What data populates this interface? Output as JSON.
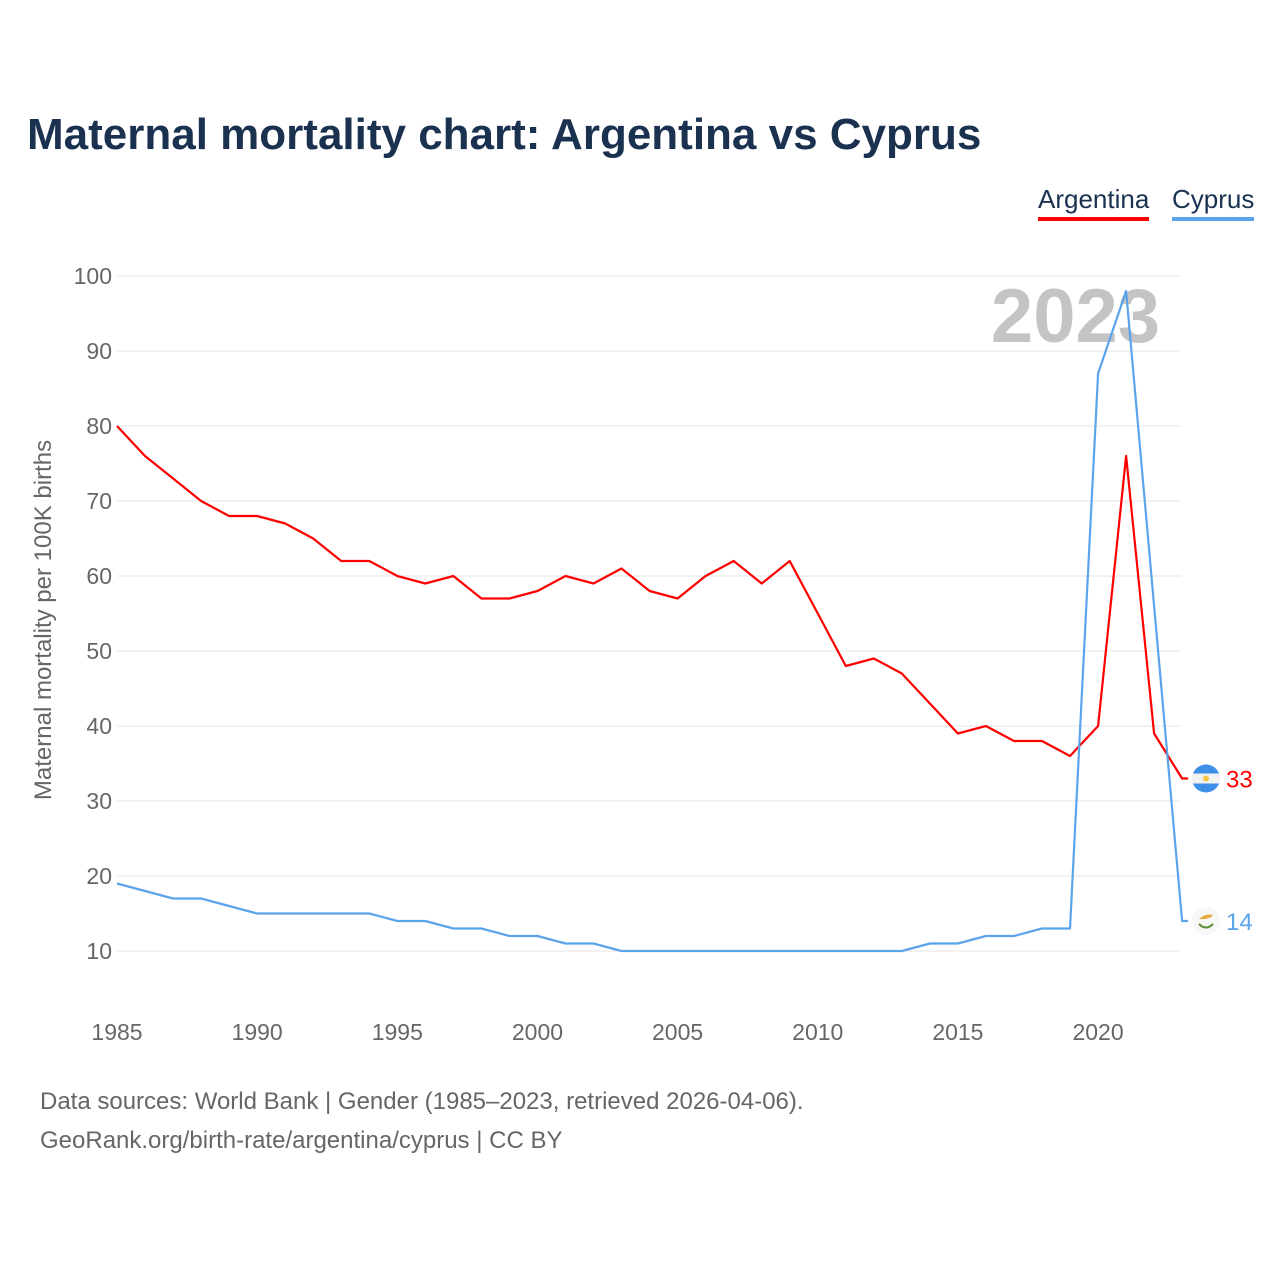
{
  "title": "Maternal mortality chart: Argentina vs Cyprus",
  "footer": {
    "line1": "Data sources: World Bank | Gender (1985–2023, retrieved 2026-04-06).",
    "line2": "GeoRank.org/birth-rate/argentina/cyprus | CC BY"
  },
  "chart_data": {
    "type": "line",
    "title": "Maternal mortality chart: Argentina vs Cyprus",
    "xlabel": "",
    "ylabel": "Maternal mortality per 100K births",
    "xlim": [
      1985,
      2023
    ],
    "ylim": [
      10,
      100
    ],
    "xticks": [
      "1985",
      "1990",
      "1995",
      "2000",
      "2005",
      "2010",
      "2015",
      "2020"
    ],
    "yticks": [
      "10",
      "20",
      "30",
      "40",
      "50",
      "60",
      "70",
      "80",
      "90",
      "100"
    ],
    "year_watermark": "2023",
    "grid": true,
    "legend_position": "top-right",
    "x": [
      1985,
      1986,
      1987,
      1988,
      1989,
      1990,
      1991,
      1992,
      1993,
      1994,
      1995,
      1996,
      1997,
      1998,
      1999,
      2000,
      2001,
      2002,
      2003,
      2004,
      2005,
      2006,
      2007,
      2008,
      2009,
      2010,
      2011,
      2012,
      2013,
      2014,
      2015,
      2016,
      2017,
      2018,
      2019,
      2020,
      2021,
      2022,
      2023
    ],
    "series": [
      {
        "name": "Argentina",
        "color": "#ff0000",
        "end_label": "33",
        "flag": "argentina-flag",
        "values": [
          80,
          76,
          73,
          70,
          68,
          68,
          67,
          65,
          62,
          62,
          60,
          59,
          60,
          57,
          57,
          58,
          60,
          59,
          61,
          58,
          57,
          60,
          62,
          59,
          62,
          55,
          48,
          49,
          47,
          43,
          39,
          40,
          38,
          38,
          36,
          40,
          76,
          39,
          33
        ]
      },
      {
        "name": "Cyprus",
        "color": "#5ba3ea",
        "end_label": "14",
        "flag": "cyprus-flag",
        "values": [
          19,
          18,
          17,
          17,
          16,
          15,
          15,
          15,
          15,
          15,
          14,
          14,
          13,
          13,
          12,
          12,
          11,
          11,
          10,
          10,
          10,
          10,
          10,
          10,
          10,
          10,
          10,
          10,
          10,
          11,
          11,
          12,
          12,
          13,
          13,
          87,
          98,
          56,
          14
        ]
      }
    ]
  }
}
